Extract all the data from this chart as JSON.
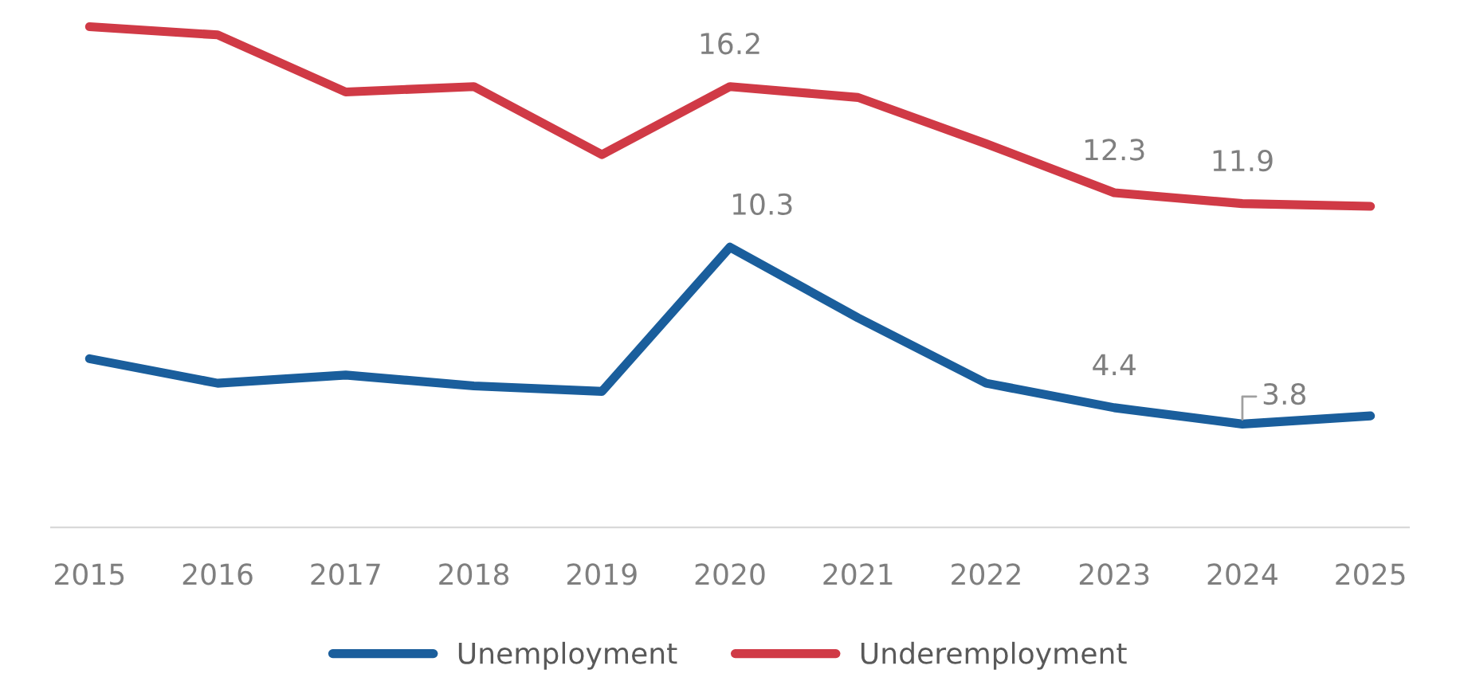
{
  "chart_data": {
    "type": "line",
    "categories": [
      "2015",
      "2016",
      "2017",
      "2018",
      "2019",
      "2020",
      "2021",
      "2022",
      "2023",
      "2024",
      "2025"
    ],
    "series": [
      {
        "name": "Unemployment",
        "color": "#1a5e9c",
        "values": [
          6.2,
          5.3,
          5.6,
          5.2,
          5.0,
          10.3,
          7.7,
          5.3,
          4.4,
          3.8,
          4.1
        ],
        "value_labels": [
          null,
          null,
          null,
          null,
          null,
          "10.3",
          null,
          null,
          "4.4",
          "3.8",
          null
        ]
      },
      {
        "name": "Underemployment",
        "color": "#d03a46",
        "values": [
          18.4,
          18.1,
          16.0,
          16.2,
          13.7,
          16.2,
          15.8,
          14.1,
          12.3,
          11.9,
          11.8
        ],
        "value_labels": [
          null,
          null,
          null,
          null,
          null,
          "16.2",
          null,
          null,
          "12.3",
          "11.9",
          null
        ]
      }
    ],
    "tick_labels": "x",
    "grid": false,
    "legend": "bottom",
    "marker": "none",
    "line_style": "solid"
  }
}
